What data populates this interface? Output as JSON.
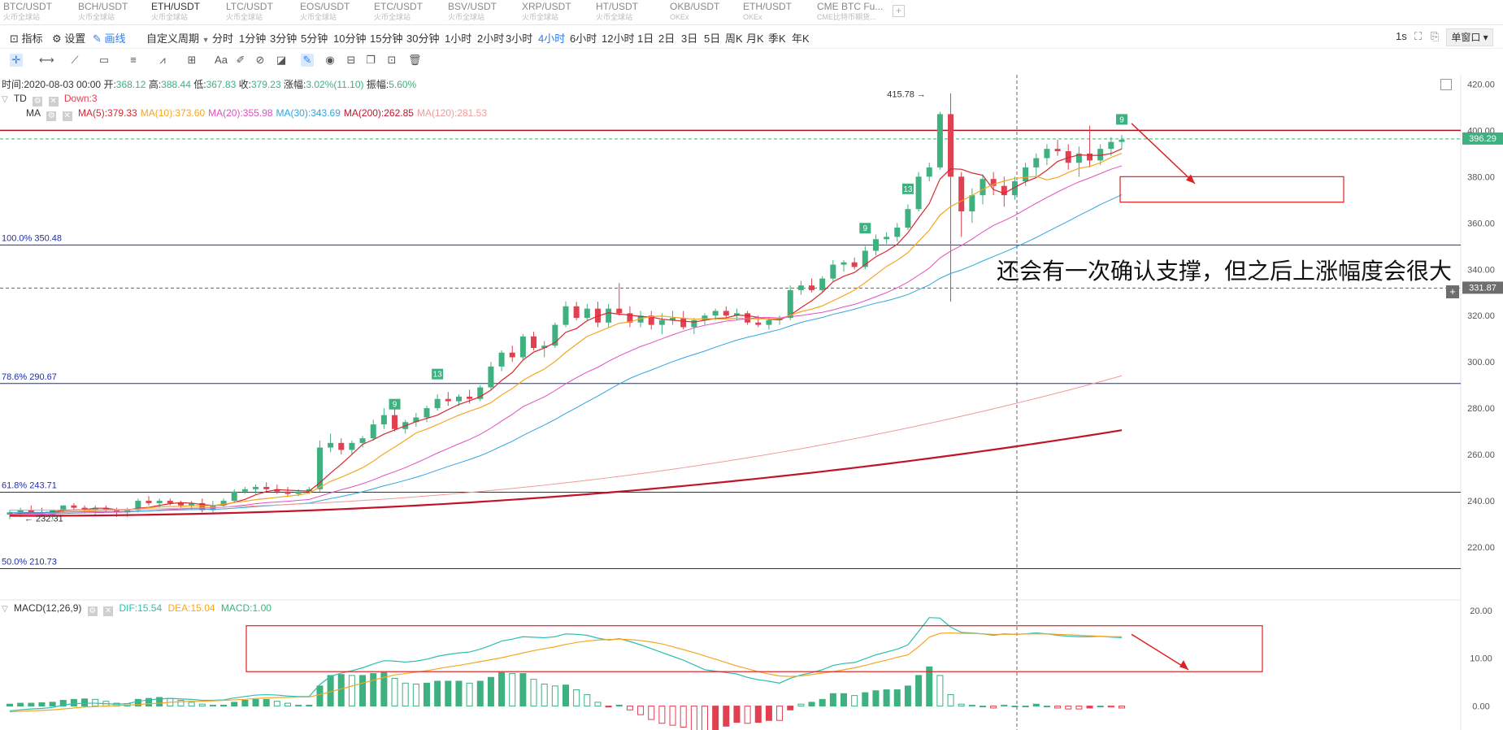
{
  "tabs": [
    {
      "label": "BTC/USDT",
      "sub": "火币全球站"
    },
    {
      "label": "BCH/USDT",
      "sub": "火币全球站"
    },
    {
      "label": "ETH/USDT",
      "sub": "火币全球站",
      "active": true
    },
    {
      "label": "LTC/USDT",
      "sub": "火币全球站"
    },
    {
      "label": "EOS/USDT",
      "sub": "火币全球站"
    },
    {
      "label": "ETC/USDT",
      "sub": "火币全球站"
    },
    {
      "label": "BSV/USDT",
      "sub": "火币全球站"
    },
    {
      "label": "XRP/USDT",
      "sub": "火币全球站"
    },
    {
      "label": "HT/USDT",
      "sub": "火币全球站"
    },
    {
      "label": "OKB/USDT",
      "sub": "OKEx"
    },
    {
      "label": "ETH/USDT",
      "sub": "OKEx"
    },
    {
      "label": "CME BTC Fu...",
      "sub": "CME比特币期货..."
    }
  ],
  "toolbar": {
    "indicator": "指标",
    "settings": "设置",
    "draw": "画线",
    "custom_period": "自定义周期",
    "periods": [
      "分时",
      "1分钟",
      "3分钟",
      "5分钟",
      "10分钟",
      "15分钟",
      "30分钟",
      "1小时",
      "2小时",
      "3小时",
      "4小时",
      "6小时",
      "12小时",
      "1日",
      "2日",
      "3日",
      "5日",
      "周K",
      "月K",
      "季K",
      "年K"
    ],
    "active_period": "4小时",
    "seconds": "1s",
    "window": "单窗口"
  },
  "info": {
    "time_label": "时间:",
    "time": "2020-08-03 00:00",
    "open_label": "开:",
    "open": "368.12",
    "high_label": "高:",
    "high": "388.44",
    "low_label": "低:",
    "low": "367.83",
    "close_label": "收:",
    "close": "379.23",
    "change_label": "涨幅:",
    "change": "3.02%(11.10)",
    "amp_label": "振幅:",
    "amp": "5.60%"
  },
  "td": {
    "name": "TD",
    "value": "Down:3"
  },
  "ma": {
    "name": "MA",
    "items": [
      {
        "label": "MA(5):379.33",
        "color": "#d8262f"
      },
      {
        "label": "MA(10):373.60",
        "color": "#f5a623"
      },
      {
        "label": "MA(20):355.98",
        "color": "#e24fc0"
      },
      {
        "label": "MA(30):343.69",
        "color": "#2fa5e0"
      },
      {
        "label": "MA(200):262.85",
        "color": "#c0142b"
      },
      {
        "label": "MA(120):281.53",
        "color": "#f29a9a"
      }
    ]
  },
  "macd_legend": {
    "name": "MACD(12,26,9)",
    "dif": "DIF:15.54",
    "dea": "DEA:15.04",
    "macd": "MACD:1.00"
  },
  "annotation": "还会有一次确认支撑，但之后上涨幅度会很大",
  "fib_levels": [
    {
      "label": "100.0% 350.48",
      "value": 350.48
    },
    {
      "label": "78.6% 290.67",
      "value": 290.67
    },
    {
      "label": "61.8% 243.71",
      "value": 243.71
    },
    {
      "label": "50.0% 210.73",
      "value": 210.73
    }
  ],
  "price_tags": {
    "current": "396.29",
    "cross": "331.87"
  },
  "markers": {
    "high": "415.78",
    "low": "232.31"
  },
  "td_counts": [
    "9",
    "13",
    "9",
    "13",
    "9"
  ],
  "colors": {
    "up": "#3fb07f",
    "down": "#e04050",
    "fib": "#1d2fb0",
    "resistance": "#b01020"
  },
  "chart_data": {
    "type": "candlestick",
    "title": "",
    "ylim": [
      200,
      424
    ],
    "price_ticks": [
      420,
      400,
      380,
      360,
      340,
      320,
      300,
      280,
      260,
      240,
      220
    ],
    "resistance": 400,
    "current_price": 396.29,
    "crosshair_price": 331.87,
    "ohlc": [
      [
        234,
        236,
        232,
        235
      ],
      [
        235,
        237,
        233,
        236
      ],
      [
        236,
        238,
        234,
        235
      ],
      [
        235,
        237,
        233,
        234
      ],
      [
        234,
        236,
        232,
        236
      ],
      [
        236,
        238,
        235,
        238
      ],
      [
        238,
        239,
        236,
        237
      ],
      [
        237,
        238,
        235,
        236
      ],
      [
        236,
        238,
        234,
        237
      ],
      [
        237,
        238,
        235,
        236
      ],
      [
        236,
        237,
        233,
        235
      ],
      [
        235,
        237,
        233,
        236
      ],
      [
        236,
        241,
        235,
        240
      ],
      [
        240,
        242,
        238,
        239
      ],
      [
        239,
        241,
        237,
        240
      ],
      [
        240,
        241,
        238,
        239
      ],
      [
        239,
        240,
        237,
        238
      ],
      [
        238,
        240,
        236,
        239
      ],
      [
        239,
        241,
        235,
        236
      ],
      [
        236,
        240,
        235,
        238
      ],
      [
        238,
        241,
        237,
        240
      ],
      [
        240,
        245,
        239,
        244
      ],
      [
        244,
        246,
        243,
        245
      ],
      [
        245,
        247,
        243,
        246
      ],
      [
        246,
        248,
        244,
        245
      ],
      [
        245,
        247,
        243,
        244
      ],
      [
        244,
        246,
        242,
        243
      ],
      [
        243,
        245,
        242,
        244
      ],
      [
        244,
        246,
        243,
        245
      ],
      [
        245,
        266,
        244,
        263
      ],
      [
        263,
        269,
        261,
        265
      ],
      [
        265,
        267,
        260,
        262
      ],
      [
        262,
        266,
        260,
        265
      ],
      [
        265,
        268,
        263,
        267
      ],
      [
        267,
        275,
        266,
        273
      ],
      [
        273,
        280,
        271,
        277
      ],
      [
        277,
        280,
        270,
        271
      ],
      [
        271,
        275,
        269,
        274
      ],
      [
        274,
        278,
        272,
        276
      ],
      [
        276,
        281,
        274,
        280
      ],
      [
        280,
        286,
        279,
        284
      ],
      [
        284,
        287,
        281,
        283
      ],
      [
        283,
        286,
        281,
        285
      ],
      [
        285,
        288,
        282,
        284
      ],
      [
        284,
        290,
        283,
        289
      ],
      [
        289,
        300,
        288,
        298
      ],
      [
        298,
        305,
        296,
        304
      ],
      [
        304,
        307,
        300,
        302
      ],
      [
        302,
        312,
        301,
        311
      ],
      [
        311,
        313,
        305,
        306
      ],
      [
        306,
        309,
        302,
        307
      ],
      [
        307,
        317,
        306,
        316
      ],
      [
        316,
        326,
        315,
        324
      ],
      [
        324,
        326,
        318,
        319
      ],
      [
        319,
        325,
        318,
        323
      ],
      [
        323,
        326,
        315,
        317
      ],
      [
        317,
        325,
        315,
        323
      ],
      [
        323,
        334,
        320,
        321
      ],
      [
        321,
        324,
        315,
        317
      ],
      [
        317,
        322,
        315,
        320
      ],
      [
        320,
        322,
        314,
        316
      ],
      [
        316,
        321,
        312,
        318
      ],
      [
        318,
        322,
        316,
        319
      ],
      [
        319,
        322,
        314,
        315
      ],
      [
        315,
        319,
        312,
        318
      ],
      [
        318,
        321,
        316,
        320
      ],
      [
        320,
        323,
        318,
        322
      ],
      [
        322,
        324,
        319,
        320
      ],
      [
        320,
        323,
        318,
        321
      ],
      [
        321,
        322,
        316,
        317
      ],
      [
        317,
        320,
        315,
        316
      ],
      [
        316,
        319,
        314,
        318
      ],
      [
        318,
        320,
        316,
        319
      ],
      [
        319,
        333,
        318,
        331
      ],
      [
        331,
        335,
        329,
        333
      ],
      [
        333,
        336,
        330,
        331
      ],
      [
        331,
        337,
        330,
        336
      ],
      [
        336,
        344,
        335,
        342
      ],
      [
        342,
        344,
        339,
        343
      ],
      [
        343,
        345,
        340,
        341
      ],
      [
        341,
        350,
        340,
        348
      ],
      [
        348,
        355,
        346,
        353
      ],
      [
        353,
        356,
        351,
        354
      ],
      [
        354,
        360,
        352,
        358
      ],
      [
        358,
        368,
        357,
        366
      ],
      [
        366,
        382,
        365,
        380
      ],
      [
        380,
        386,
        378,
        384
      ],
      [
        384,
        408,
        383,
        407
      ],
      [
        407,
        416,
        326,
        380
      ],
      [
        380,
        382,
        354,
        365
      ],
      [
        365,
        375,
        360,
        372
      ],
      [
        372,
        381,
        368,
        379
      ],
      [
        379,
        382,
        372,
        376
      ],
      [
        376,
        380,
        367,
        372
      ],
      [
        372,
        380,
        370,
        378
      ],
      [
        378,
        386,
        376,
        384
      ],
      [
        384,
        390,
        380,
        388
      ],
      [
        388,
        394,
        385,
        392
      ],
      [
        392,
        396,
        389,
        391
      ],
      [
        391,
        394,
        383,
        386
      ],
      [
        386,
        393,
        380,
        390
      ],
      [
        390,
        402,
        384,
        387
      ],
      [
        387,
        394,
        385,
        392
      ],
      [
        392,
        397,
        389,
        395
      ],
      [
        395,
        398,
        392,
        396
      ]
    ],
    "series": [
      {
        "name": "MA(5)",
        "values": []
      },
      {
        "name": "MA(10)",
        "values": []
      },
      {
        "name": "MA(20)",
        "values": []
      },
      {
        "name": "MA(30)",
        "values": []
      },
      {
        "name": "MA(120)",
        "values": []
      },
      {
        "name": "MA(200)",
        "values": []
      }
    ],
    "macd": {
      "ylim": [
        -5,
        21
      ],
      "ticks": [
        20,
        10,
        0
      ],
      "dif": [
        -1,
        -0.8,
        -0.6,
        -0.5,
        -0.3,
        0.2,
        0.5,
        0.6,
        0.6,
        0.5,
        0.4,
        0.5,
        1,
        1.3,
        1.5,
        1.6,
        1.5,
        1.4,
        1.2,
        1.2,
        1.3,
        1.7,
        2,
        2.3,
        2.4,
        2.3,
        2.1,
        2,
        2,
        4.5,
        6.2,
        6.9,
        7.4,
        8,
        8.8,
        9.5,
        9.4,
        9.2,
        9.4,
        9.8,
        10.4,
        10.8,
        11.1,
        11.3,
        11.9,
        12.7,
        13.6,
        14,
        14.5,
        14.4,
        14.3,
        14.5,
        15.1,
        15,
        14.8,
        14.2,
        13.8,
        14.1,
        13.5,
        12.8,
        12,
        11.2,
        10.4,
        9.6,
        8.6,
        7.6,
        7.3,
        7,
        6.7,
        6,
        5.5,
        5.2,
        4.8,
        5.8,
        6.5,
        7,
        7.6,
        8.5,
        8.9,
        9.1,
        9.9,
        10.7,
        11.3,
        11.9,
        12.8,
        15.6,
        18.5,
        18.4,
        16.5,
        15.4,
        15.3,
        15.1,
        14.8,
        15.1,
        15,
        15.1,
        15.3,
        15.1,
        14.8,
        14.6,
        14.5,
        14.5,
        14.6,
        14.4,
        14.3
      ],
      "dea": [
        -1.2,
        -1.1,
        -1,
        -0.9,
        -0.8,
        -0.6,
        -0.4,
        -0.2,
        -0.1,
        0,
        0.1,
        0.2,
        0.3,
        0.5,
        0.6,
        0.8,
        0.9,
        1,
        1,
        1.1,
        1.2,
        1.3,
        1.4,
        1.6,
        1.7,
        1.8,
        1.8,
        1.9,
        1.9,
        2.4,
        3,
        3.6,
        4.2,
        4.8,
        5.4,
        6,
        6.5,
        6.8,
        7.1,
        7.4,
        7.8,
        8.2,
        8.5,
        8.9,
        9.3,
        9.7,
        10.1,
        10.6,
        11.1,
        11.6,
        12,
        12.4,
        12.9,
        13.3,
        13.6,
        13.8,
        13.9,
        14,
        13.9,
        13.7,
        13.4,
        13,
        12.4,
        11.8,
        11.2,
        10.5,
        9.8,
        9.1,
        8.4,
        7.8,
        7.2,
        6.7,
        6.3,
        6.2,
        6.3,
        6.6,
        6.9,
        7.2,
        7.6,
        8,
        8.5,
        9.1,
        9.6,
        10.2,
        10.7,
        12.4,
        14.4,
        15.2,
        15.3,
        15.2,
        15.2,
        15.1,
        15,
        15,
        15,
        15.1,
        15.1,
        15.1,
        15,
        14.9,
        14.8,
        14.7,
        14.6,
        14.5,
        14.5
      ],
      "hist": [
        0.4,
        0.6,
        0.6,
        0.7,
        0.8,
        1.2,
        1.4,
        1.5,
        1.4,
        1.0,
        0.6,
        0.5,
        1.4,
        1.6,
        1.8,
        1.6,
        1.2,
        0.8,
        0.4,
        0.2,
        0.2,
        0.8,
        1.2,
        1.4,
        1.4,
        1.0,
        0.6,
        0.2,
        0.2,
        4.2,
        6.4,
        6.6,
        6.4,
        6.4,
        6.8,
        7.0,
        5.8,
        4.8,
        4.6,
        4.8,
        5.2,
        5.2,
        5.2,
        4.8,
        5.2,
        6.0,
        7.0,
        6.8,
        6.8,
        5.6,
        4.6,
        4.2,
        4.4,
        3.4,
        2.4,
        0.8,
        -0.2,
        0.2,
        -0.8,
        -1.8,
        -2.8,
        -3.6,
        -4.0,
        -4.4,
        -5.2,
        -5.8,
        -5.0,
        -4.2,
        -3.4,
        -3.6,
        -3.4,
        -3.0,
        -3.0,
        -0.8,
        0.4,
        0.8,
        1.4,
        2.6,
        2.6,
        2.2,
        2.8,
        3.2,
        3.4,
        3.4,
        4.2,
        6.4,
        8.2,
        6.4,
        2.4,
        0.4,
        0.2,
        0,
        -0.4,
        0.2,
        0,
        0,
        0.4,
        0,
        -0.4,
        -0.6,
        -0.6,
        -0.4,
        0,
        -0.2,
        -0.4
      ]
    }
  }
}
